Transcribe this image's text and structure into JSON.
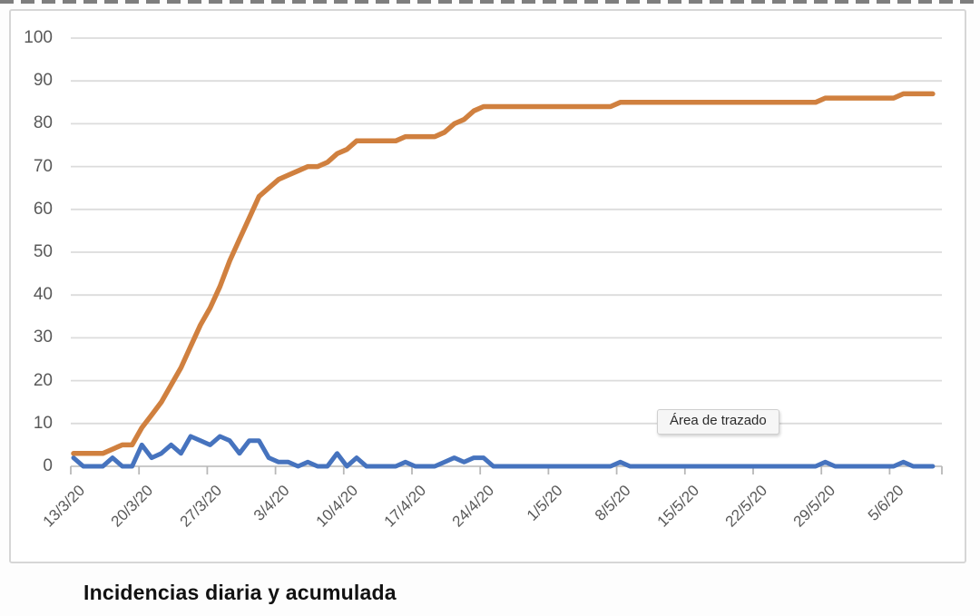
{
  "page": {
    "caption": "Incidencias diaria y acumulada"
  },
  "tooltip": {
    "label": "Área de trazado"
  },
  "colors": {
    "accent_orange": "#D0803F",
    "accent_blue": "#4673BE",
    "gridline": "#dcdcdc",
    "axis_line": "#c2c2c2",
    "axis_text": "#595959"
  },
  "chart_data": {
    "type": "line",
    "title": "Incidencias diaria y acumulada",
    "grid": true,
    "legend_position": "none",
    "ylim": [
      0,
      100
    ],
    "y_ticks": [
      100,
      90,
      80,
      70,
      60,
      50,
      40,
      30,
      20,
      10,
      0
    ],
    "x_tick_labels": [
      "13/3/20",
      "20/3/20",
      "27/3/20",
      "3/4/20",
      "10/4/20",
      "17/4/20",
      "24/4/20",
      "1/5/20",
      "8/5/20",
      "15/5/20",
      "22/5/20",
      "29/5/20",
      "5/6/20"
    ],
    "x_tick_interval_days": 7,
    "x_start_label": "13/3/20",
    "points_are_daily": true,
    "annotations": [
      {
        "type": "tooltip",
        "text": "Área de trazado"
      }
    ],
    "series": [
      {
        "name": "acumulada",
        "color": "#D0803F",
        "stroke_width": 5.5,
        "values": [
          3,
          3,
          3,
          3,
          4,
          5,
          5,
          9,
          12,
          15,
          19,
          23,
          28,
          33,
          37,
          42,
          48,
          53,
          58,
          63,
          65,
          67,
          68,
          69,
          70,
          70,
          71,
          73,
          74,
          76,
          76,
          76,
          76,
          76,
          77,
          77,
          77,
          77,
          78,
          80,
          81,
          83,
          84,
          84,
          84,
          84,
          84,
          84,
          84,
          84,
          84,
          84,
          84,
          84,
          84,
          84,
          85,
          85,
          85,
          85,
          85,
          85,
          85,
          85,
          85,
          85,
          85,
          85,
          85,
          85,
          85,
          85,
          85,
          85,
          85,
          85,
          85,
          86,
          86,
          86,
          86,
          86,
          86,
          86,
          86,
          87,
          87,
          87,
          87
        ]
      },
      {
        "name": "diaria",
        "color": "#4673BE",
        "stroke_width": 5,
        "values": [
          2,
          0,
          0,
          0,
          2,
          0,
          0,
          5,
          2,
          3,
          5,
          3,
          7,
          6,
          5,
          7,
          6,
          3,
          6,
          6,
          2,
          1,
          1,
          0,
          1,
          0,
          0,
          3,
          0,
          2,
          0,
          0,
          0,
          0,
          1,
          0,
          0,
          0,
          1,
          2,
          1,
          2,
          2,
          0,
          0,
          0,
          0,
          0,
          0,
          0,
          0,
          0,
          0,
          0,
          0,
          0,
          1,
          0,
          0,
          0,
          0,
          0,
          0,
          0,
          0,
          0,
          0,
          0,
          0,
          0,
          0,
          0,
          0,
          0,
          0,
          0,
          0,
          1,
          0,
          0,
          0,
          0,
          0,
          0,
          0,
          1,
          0,
          0,
          0
        ]
      }
    ]
  }
}
